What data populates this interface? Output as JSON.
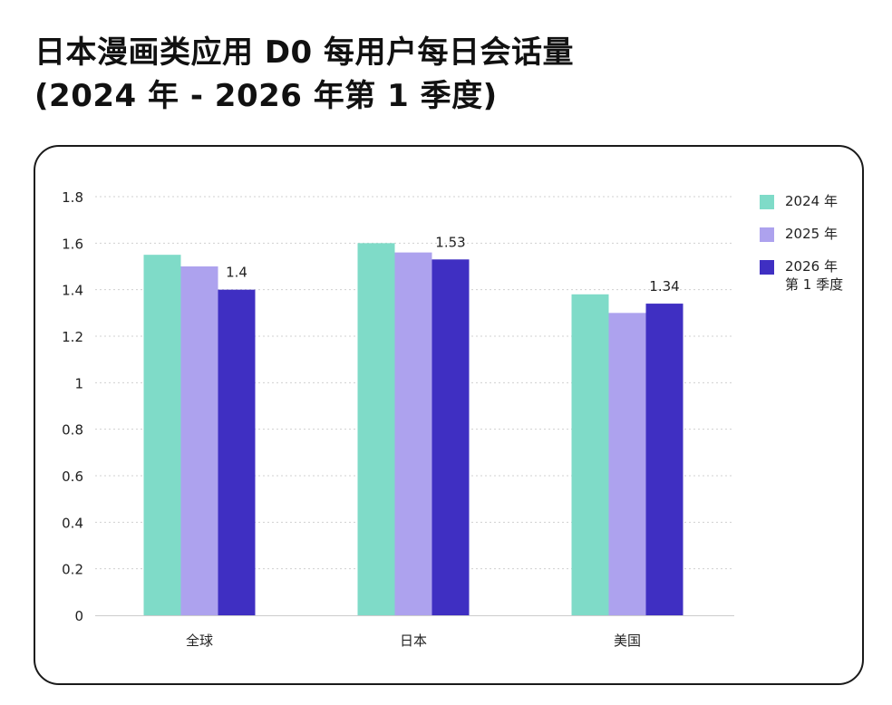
{
  "title_line1": "日本漫画类应用 D0 每用户每日会话量",
  "title_line2": "(2024 年 - 2026 年第 1 季度)",
  "chart_data": {
    "type": "bar",
    "title": "日本漫画类应用 D0 每用户每日会话量 (2024 年 - 2026 年第 1 季度)",
    "categories": [
      "全球",
      "日本",
      "美国"
    ],
    "series": [
      {
        "name": "2024 年",
        "color": "#7fdbc8",
        "values": [
          1.55,
          1.6,
          1.38
        ],
        "labels": [
          "",
          "",
          ""
        ]
      },
      {
        "name": "2025 年",
        "color": "#ada2ee",
        "values": [
          1.5,
          1.56,
          1.3
        ],
        "labels": [
          "",
          "",
          ""
        ]
      },
      {
        "name": "2026 年\n第 1 季度",
        "color": "#3f2fc2",
        "values": [
          1.4,
          1.53,
          1.34
        ],
        "labels": [
          "1.4",
          "1.53",
          "1.34"
        ]
      }
    ],
    "ylim": [
      0,
      1.8
    ],
    "yticks": [
      "0",
      "0.2",
      "0.4",
      "0.6",
      "0.8",
      "1",
      "1.2",
      "1.4",
      "1.6",
      "1.8"
    ],
    "grid": true,
    "legend_position": "right"
  }
}
